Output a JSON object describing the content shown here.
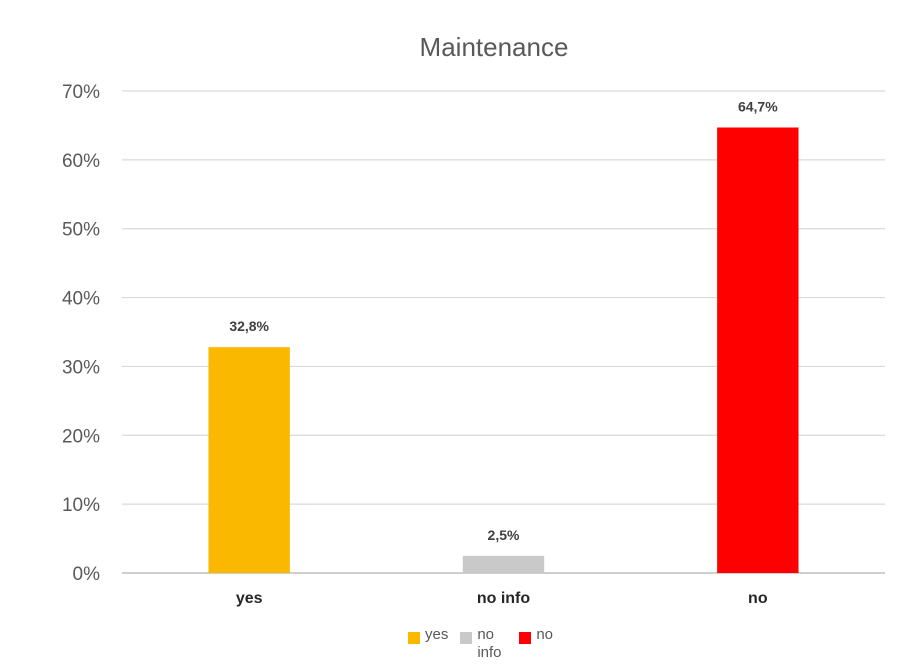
{
  "chart_data": {
    "type": "bar",
    "title": "Maintenance",
    "categories": [
      "yes",
      "no info",
      "no"
    ],
    "values": [
      32.8,
      2.5,
      64.7
    ],
    "data_labels": [
      "32,8%",
      "2,5%",
      "64,7%"
    ],
    "colors": [
      "#FBB800",
      "#C9C9C9",
      "#FF0000"
    ],
    "ylim": [
      0,
      70
    ],
    "yticks": [
      0,
      10,
      20,
      30,
      40,
      50,
      60,
      70
    ],
    "ytick_labels": [
      "0%",
      "10%",
      "20%",
      "30%",
      "40%",
      "50%",
      "60%",
      "70%"
    ],
    "grid": true,
    "legend": {
      "placement": "bottom",
      "entries": [
        "yes",
        "no info",
        "no"
      ]
    }
  }
}
